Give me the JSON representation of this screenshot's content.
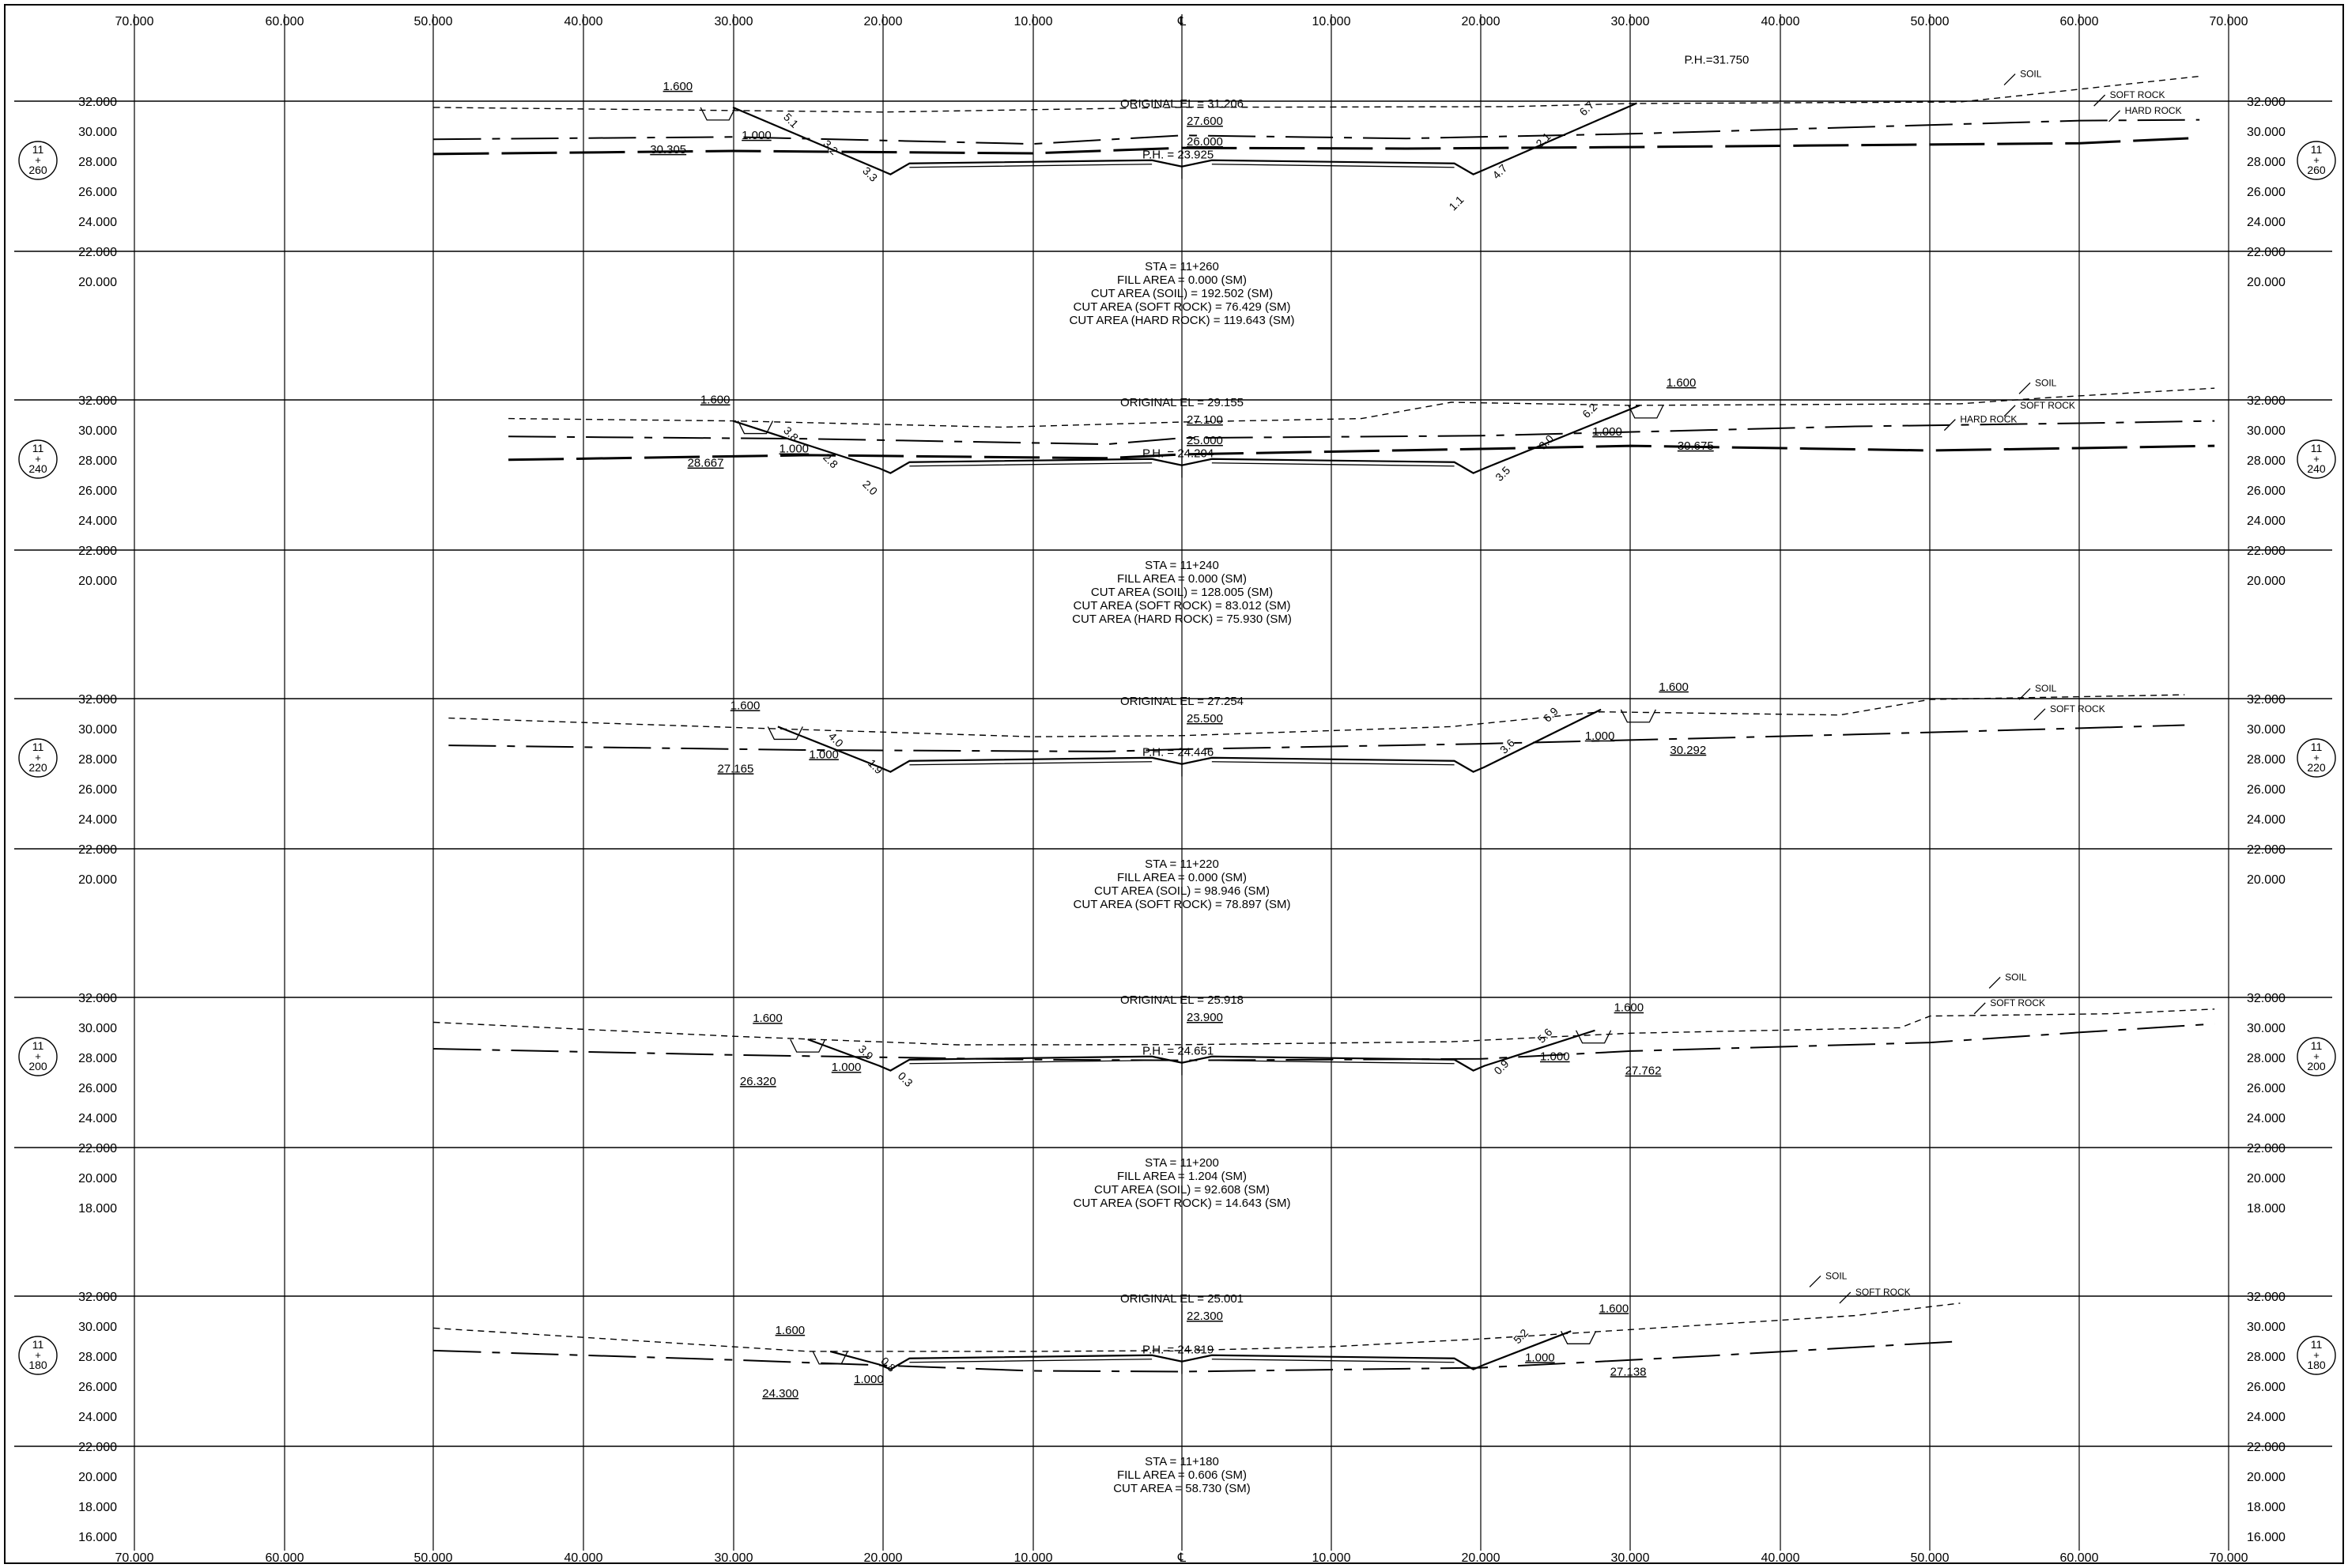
{
  "axis": {
    "offsets": [
      "70.000",
      "60.000",
      "50.000",
      "40.000",
      "30.000",
      "20.000",
      "10.000",
      "℄",
      "10.000",
      "20.000",
      "30.000",
      "40.000",
      "50.000",
      "60.000",
      "70.000"
    ]
  },
  "sections": [
    {
      "station_badge": [
        "11",
        "+",
        "260"
      ],
      "elev_labels": [
        "32.000",
        "30.000",
        "28.000",
        "26.000",
        "24.000",
        "22.000",
        "20.000"
      ],
      "original_el": "ORIGINAL EL = 31.206",
      "ph": "P.H. = 23.925",
      "center_elevs": [
        "27.600",
        "26.000"
      ],
      "left_ditch_top": "1.600",
      "left_ditch_bot": "1.000",
      "left_elev": "30.305",
      "slope_dims_left": [
        "5.1",
        "3.2",
        "3.3"
      ],
      "slope_dims_right": [
        "6.7",
        "2.1",
        "4.7",
        "1.1"
      ],
      "right_label": "P.H.=31.750",
      "layers": [
        "SOIL",
        "SOFT ROCK",
        "HARD ROCK"
      ],
      "summary": [
        "STA = 11+260",
        "FILL AREA = 0.000 (SM)",
        "CUT AREA (SOIL) = 192.502 (SM)",
        "CUT AREA (SOFT ROCK) = 76.429 (SM)",
        "CUT AREA (HARD ROCK) = 119.643 (SM)"
      ]
    },
    {
      "station_badge": [
        "11",
        "+",
        "240"
      ],
      "elev_labels": [
        "32.000",
        "30.000",
        "28.000",
        "26.000",
        "24.000",
        "22.000",
        "20.000"
      ],
      "original_el": "ORIGINAL EL = 29.155",
      "ph": "P.H. = 24.204",
      "center_elevs": [
        "27.100",
        "25.000"
      ],
      "left_ditch_top": "1.600",
      "left_ditch_bot": "1.000",
      "left_elev": "28.667",
      "right_ditch_top": "1.600",
      "right_ditch_bot": "1.000",
      "right_elev": "30.675",
      "slope_dims_left": [
        "3.8",
        "2.8",
        "2.0"
      ],
      "slope_dims_right": [
        "6.2",
        "3.0",
        "3.5"
      ],
      "layers": [
        "SOIL",
        "SOFT ROCK",
        "HARD ROCK"
      ],
      "summary": [
        "STA = 11+240",
        "FILL AREA = 0.000 (SM)",
        "CUT AREA (SOIL) = 128.005 (SM)",
        "CUT AREA (SOFT ROCK) = 83.012 (SM)",
        "CUT AREA (HARD ROCK) = 75.930 (SM)"
      ]
    },
    {
      "station_badge": [
        "11",
        "+",
        "220"
      ],
      "elev_labels": [
        "32.000",
        "30.000",
        "28.000",
        "26.000",
        "24.000",
        "22.000",
        "20.000"
      ],
      "original_el": "ORIGINAL EL = 27.254",
      "ph": "P.H. = 24.446",
      "center_elevs": [
        "25.500"
      ],
      "left_ditch_top": "1.600",
      "left_ditch_bot": "1.000",
      "left_elev": "27.165",
      "right_ditch_top": "1.600",
      "right_ditch_bot": "1.000",
      "right_elev": "30.292",
      "slope_dims_left": [
        "4.0",
        "1.9"
      ],
      "slope_dims_right": [
        "6.9",
        "3.6"
      ],
      "layers": [
        "SOIL",
        "SOFT ROCK"
      ],
      "summary": [
        "STA = 11+220",
        "FILL AREA = 0.000 (SM)",
        "CUT AREA (SOIL) = 98.946 (SM)",
        "CUT AREA (SOFT ROCK) = 78.897 (SM)"
      ]
    },
    {
      "station_badge": [
        "11",
        "+",
        "200"
      ],
      "elev_labels": [
        "32.000",
        "30.000",
        "28.000",
        "26.000",
        "24.000",
        "22.000",
        "20.000",
        "18.000"
      ],
      "original_el": "ORIGINAL EL = 25.918",
      "ph": "P.H. = 24.651",
      "center_elevs": [
        "23.900"
      ],
      "left_ditch_top": "1.600",
      "left_ditch_bot": "1.000",
      "left_elev": "26.320",
      "right_ditch_top": "1.600",
      "right_ditch_bot": "1.000",
      "right_elev": "27.762",
      "slope_dims_left": [
        "3.9",
        "0.3"
      ],
      "slope_dims_right": [
        "5.6",
        "0.9"
      ],
      "layers": [
        "SOIL",
        "SOFT ROCK"
      ],
      "summary": [
        "STA = 11+200",
        "FILL AREA = 1.204 (SM)",
        "CUT AREA (SOIL) = 92.608 (SM)",
        "CUT AREA (SOFT ROCK) = 14.643 (SM)"
      ]
    },
    {
      "station_badge": [
        "11",
        "+",
        "180"
      ],
      "elev_labels": [
        "32.000",
        "30.000",
        "28.000",
        "26.000",
        "24.000",
        "22.000",
        "20.000",
        "18.000",
        "16.000"
      ],
      "original_el": "ORIGINAL EL = 25.001",
      "ph": "P.H. = 24.819",
      "center_elevs": [
        "22.300"
      ],
      "left_ditch_top": "1.600",
      "left_ditch_bot": "1.000",
      "left_elev": "24.300",
      "right_ditch_top": "1.600",
      "right_ditch_bot": "1.000",
      "right_elev": "27.138",
      "slope_dims_left": [
        "0.8"
      ],
      "slope_dims_right": [
        "5.2"
      ],
      "layers": [
        "SOIL",
        "SOFT ROCK"
      ],
      "summary": [
        "STA = 11+180",
        "FILL AREA = 0.606 (SM)",
        "CUT AREA = 58.730 (SM)"
      ]
    }
  ]
}
